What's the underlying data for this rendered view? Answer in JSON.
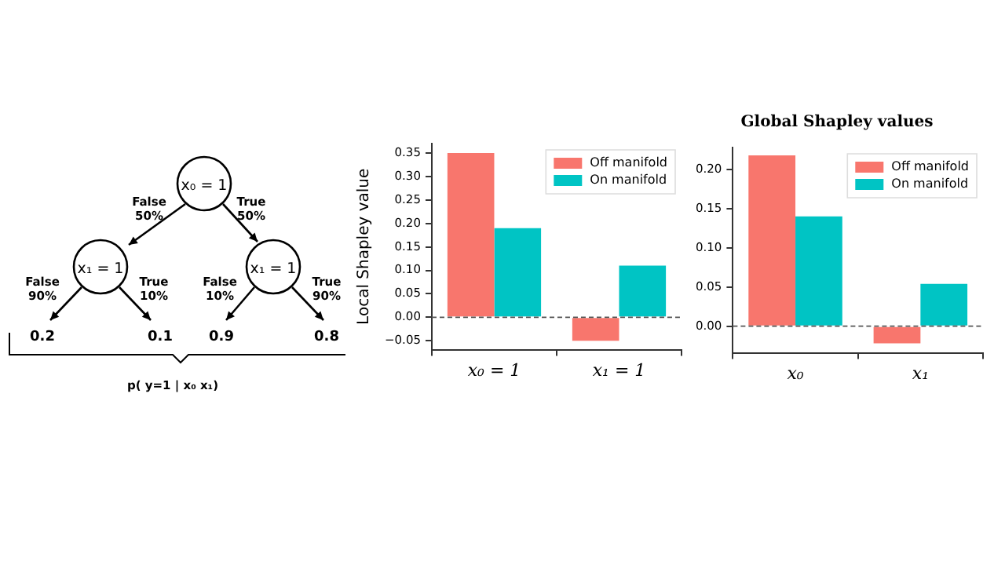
{
  "chart_data": [
    {
      "type": "other",
      "annotations": [
        "x₀ = 1",
        "x₁ = 1",
        "x₁ = 1",
        "False\n50%",
        "True\n50%",
        "False\n90%",
        "True\n10%",
        "False\n10%",
        "True\n90%",
        "0.2",
        "0.1",
        "0.9",
        "0.8",
        "p( y=1 | x₀ x₁)"
      ]
    },
    {
      "type": "bar",
      "categories": [
        "x₀ = 1",
        "x₁ = 1"
      ],
      "ylabel": "Local Shapley value",
      "series": [
        {
          "name": "Off manifold",
          "color": "#f8766d",
          "values": [
            0.35,
            -0.05
          ]
        },
        {
          "name": "On manifold",
          "color": "#00c4c4",
          "values": [
            0.19,
            0.11
          ]
        }
      ],
      "ylim": [
        -0.069,
        0.37
      ],
      "yticks": [
        {
          "value": -0.05,
          "label": "−0.05"
        },
        {
          "value": 0,
          "label": "0.00"
        },
        0.05,
        {
          "value": 0.1,
          "label": "0.10"
        },
        0.15,
        {
          "value": 0.2,
          "label": "0.20"
        },
        0.25,
        {
          "value": 0.3,
          "label": "0.30"
        },
        0.35
      ],
      "ref_lines": [
        {
          "axis": "y",
          "value": 0,
          "color": "#555555",
          "line_style": "dashed"
        }
      ],
      "legend": "top right",
      "grid": false
    },
    {
      "type": "bar",
      "title": "Global Shapley values",
      "categories": [
        "x₀",
        "x₁"
      ],
      "series": [
        {
          "name": "Off manifold",
          "color": "#f8766d",
          "values": [
            0.218,
            -0.022
          ]
        },
        {
          "name": "On manifold",
          "color": "#00c4c4",
          "values": [
            0.14,
            0.054
          ]
        }
      ],
      "ylim": [
        -0.034,
        0.228
      ],
      "yticks": [
        {
          "value": 0,
          "label": "0.00"
        },
        0.05,
        {
          "value": 0.1,
          "label": "0.10"
        },
        0.15,
        {
          "value": 0.2,
          "label": "0.20"
        }
      ],
      "ref_lines": [
        {
          "axis": "y",
          "value": 0,
          "color": "#555555",
          "line_style": "dashed"
        }
      ],
      "legend": "top right",
      "grid": false
    }
  ]
}
